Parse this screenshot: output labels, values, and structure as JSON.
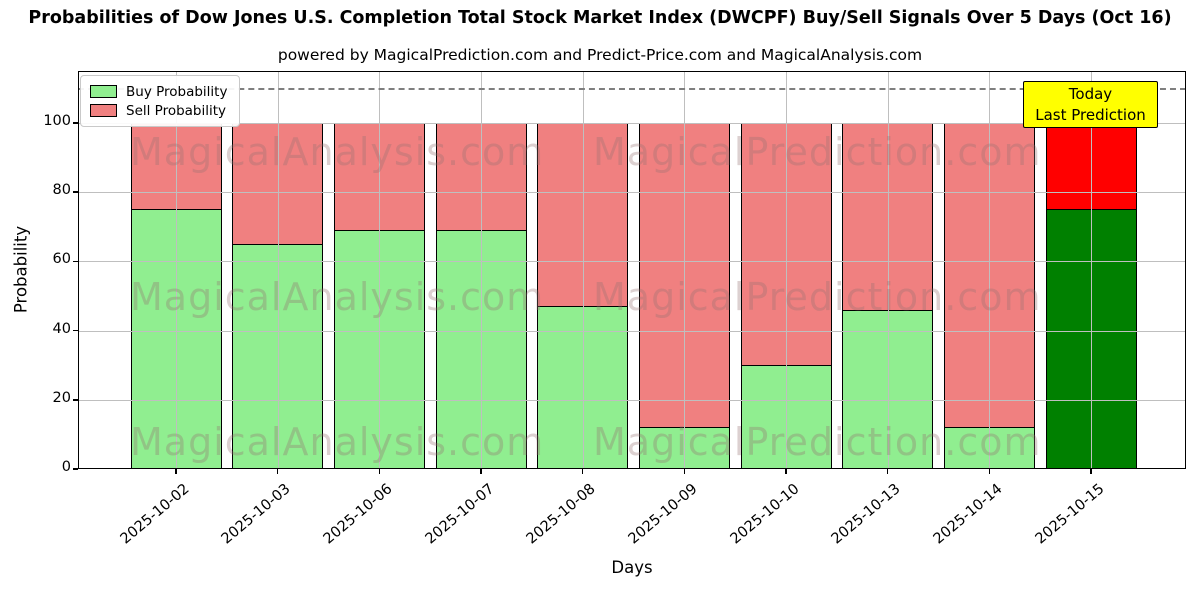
{
  "header": {
    "title": "Probabilities of Dow Jones U.S. Completion Total Stock Market Index (DWCPF) Buy/Sell Signals Over 5 Days (Oct 16)",
    "subtitle": "powered by MagicalPrediction.com and Predict-Price.com and MagicalAnalysis.com"
  },
  "legend": {
    "items": [
      {
        "label": "Buy Probability",
        "color": "#90ee90"
      },
      {
        "label": "Sell Probability",
        "color": "#f08080"
      }
    ]
  },
  "annotation": {
    "line1": "Today",
    "line2": "Last Prediction",
    "bg_color": "#ffff00"
  },
  "watermarks": {
    "texts": [
      "MagicalAnalysis.com",
      "MagicalPrediction.com"
    ]
  },
  "chart_data": {
    "type": "bar",
    "stacked": true,
    "title": "Probabilities of Dow Jones U.S. Completion Total Stock Market Index (DWCPF) Buy/Sell Signals Over 5 Days (Oct 16)",
    "xlabel": "Days",
    "ylabel": "Probability",
    "categories": [
      "2025-10-02",
      "2025-10-03",
      "2025-10-06",
      "2025-10-07",
      "2025-10-08",
      "2025-10-09",
      "2025-10-10",
      "2025-10-13",
      "2025-10-14",
      "2025-10-15"
    ],
    "series": [
      {
        "name": "Buy Probability",
        "color": "#90ee90",
        "values": [
          75,
          65,
          69,
          69,
          47,
          12,
          30,
          46,
          12,
          75
        ]
      },
      {
        "name": "Sell Probability",
        "color": "#f08080",
        "values": [
          25,
          35,
          31,
          31,
          53,
          88,
          70,
          54,
          88,
          25
        ]
      }
    ],
    "today_index": 9,
    "today_colors": {
      "buy": "#008000",
      "sell": "#ff0000"
    },
    "ylim": [
      0,
      115
    ],
    "yticks": [
      0,
      20,
      40,
      60,
      80,
      100
    ],
    "dashed_line_y": 110,
    "grid": true,
    "legend_position": "upper left",
    "bar_edge_color": "#000000"
  }
}
